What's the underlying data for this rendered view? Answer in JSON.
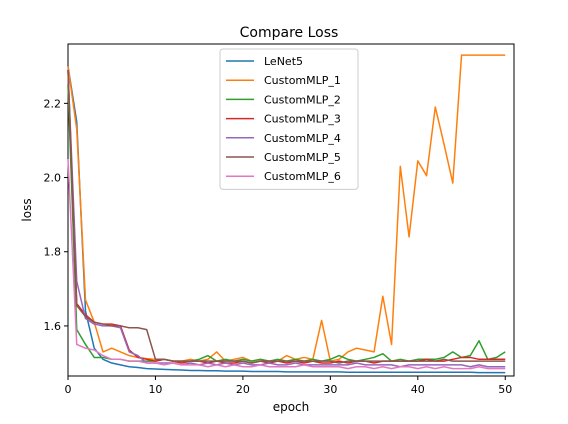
{
  "chart_data": {
    "type": "line",
    "title": "Compare Loss",
    "xlabel": "epoch",
    "ylabel": "loss",
    "xlim": [
      0,
      51
    ],
    "ylim": [
      1.465,
      2.36
    ],
    "x_ticks": [
      0,
      10,
      20,
      30,
      40,
      50
    ],
    "y_ticks": [
      1.6,
      1.8,
      2.0,
      2.2
    ],
    "legend_position": "upper-center",
    "grid": false,
    "series": [
      {
        "name": "LeNet5",
        "color": "#1f77b4",
        "values": [
          2.3,
          2.15,
          1.64,
          1.54,
          1.51,
          1.5,
          1.495,
          1.49,
          1.488,
          1.485,
          1.484,
          1.483,
          1.482,
          1.481,
          1.48,
          1.48,
          1.479,
          1.479,
          1.478,
          1.478,
          1.478,
          1.477,
          1.477,
          1.477,
          1.477,
          1.476,
          1.476,
          1.476,
          1.476,
          1.476,
          1.476,
          1.476,
          1.475,
          1.475,
          1.475,
          1.475,
          1.475,
          1.475,
          1.475,
          1.475,
          1.475,
          1.475,
          1.475,
          1.475,
          1.475,
          1.475,
          1.475,
          1.474,
          1.474,
          1.474,
          1.474
        ]
      },
      {
        "name": "CustomMLP_1",
        "color": "#ff7f0e",
        "values": [
          2.3,
          2.13,
          1.67,
          1.61,
          1.53,
          1.54,
          1.53,
          1.52,
          1.515,
          1.512,
          1.51,
          1.51,
          1.505,
          1.505,
          1.51,
          1.505,
          1.51,
          1.53,
          1.505,
          1.51,
          1.515,
          1.505,
          1.51,
          1.505,
          1.505,
          1.52,
          1.51,
          1.515,
          1.51,
          1.615,
          1.505,
          1.51,
          1.53,
          1.54,
          1.535,
          1.53,
          1.68,
          1.55,
          2.03,
          1.84,
          2.045,
          2.005,
          2.19,
          2.09,
          1.985,
          2.33,
          2.33,
          2.33,
          2.33,
          2.33,
          2.33
        ]
      },
      {
        "name": "CustomMLP_2",
        "color": "#2ca02c",
        "values": [
          2.25,
          1.59,
          1.55,
          1.515,
          1.515,
          1.51,
          1.51,
          1.505,
          1.505,
          1.505,
          1.505,
          1.51,
          1.505,
          1.505,
          1.505,
          1.51,
          1.52,
          1.505,
          1.51,
          1.505,
          1.51,
          1.505,
          1.51,
          1.505,
          1.51,
          1.505,
          1.51,
          1.505,
          1.51,
          1.505,
          1.51,
          1.52,
          1.51,
          1.505,
          1.51,
          1.515,
          1.525,
          1.505,
          1.51,
          1.505,
          1.51,
          1.51,
          1.51,
          1.515,
          1.53,
          1.515,
          1.52,
          1.56,
          1.51,
          1.515,
          1.53
        ]
      },
      {
        "name": "CustomMLP_3",
        "color": "#d62728",
        "values": [
          2.29,
          1.66,
          1.63,
          1.61,
          1.605,
          1.605,
          1.6,
          1.535,
          1.515,
          1.51,
          1.505,
          1.51,
          1.505,
          1.5,
          1.505,
          1.505,
          1.5,
          1.505,
          1.5,
          1.5,
          1.505,
          1.5,
          1.505,
          1.5,
          1.505,
          1.5,
          1.505,
          1.5,
          1.505,
          1.5,
          1.5,
          1.505,
          1.5,
          1.505,
          1.505,
          1.5,
          1.505,
          1.505,
          1.505,
          1.505,
          1.505,
          1.51,
          1.505,
          1.505,
          1.51,
          1.515,
          1.515,
          1.51,
          1.51,
          1.51,
          1.51
        ]
      },
      {
        "name": "CustomMLP_4",
        "color": "#9467bd",
        "values": [
          2.29,
          1.72,
          1.62,
          1.605,
          1.6,
          1.6,
          1.595,
          1.53,
          1.52,
          1.5,
          1.5,
          1.5,
          1.5,
          1.495,
          1.5,
          1.495,
          1.5,
          1.495,
          1.5,
          1.495,
          1.5,
          1.495,
          1.495,
          1.5,
          1.495,
          1.495,
          1.5,
          1.495,
          1.495,
          1.495,
          1.495,
          1.495,
          1.495,
          1.5,
          1.495,
          1.495,
          1.495,
          1.495,
          1.49,
          1.495,
          1.495,
          1.495,
          1.495,
          1.495,
          1.495,
          1.495,
          1.49,
          1.495,
          1.49,
          1.49,
          1.49
        ]
      },
      {
        "name": "CustomMLP_5",
        "color": "#8c564b",
        "values": [
          2.29,
          1.655,
          1.625,
          1.61,
          1.605,
          1.6,
          1.6,
          1.595,
          1.595,
          1.59,
          1.51,
          1.51,
          1.505,
          1.505,
          1.505,
          1.505,
          1.505,
          1.505,
          1.505,
          1.505,
          1.505,
          1.5,
          1.505,
          1.505,
          1.505,
          1.505,
          1.505,
          1.505,
          1.505,
          1.505,
          1.505,
          1.5,
          1.505,
          1.505,
          1.505,
          1.505,
          1.505,
          1.505,
          1.505,
          1.505,
          1.505,
          1.505,
          1.505,
          1.51,
          1.505,
          1.505,
          1.505,
          1.505,
          1.505,
          1.505,
          1.505
        ]
      },
      {
        "name": "CustomMLP_6",
        "color": "#e377c2",
        "values": [
          2.05,
          1.55,
          1.54,
          1.535,
          1.52,
          1.51,
          1.51,
          1.505,
          1.505,
          1.5,
          1.5,
          1.495,
          1.5,
          1.495,
          1.495,
          1.495,
          1.49,
          1.495,
          1.49,
          1.495,
          1.49,
          1.49,
          1.495,
          1.49,
          1.49,
          1.49,
          1.49,
          1.495,
          1.49,
          1.49,
          1.49,
          1.49,
          1.485,
          1.49,
          1.49,
          1.485,
          1.49,
          1.485,
          1.49,
          1.49,
          1.485,
          1.49,
          1.485,
          1.49,
          1.485,
          1.485,
          1.485,
          1.49,
          1.485,
          1.485,
          1.485
        ]
      }
    ]
  }
}
